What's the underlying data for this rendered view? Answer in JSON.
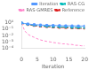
{
  "chart_data": {
    "type": "line",
    "xlabel": "Iteration",
    "x": [
      0,
      1,
      2,
      3,
      4,
      5,
      6,
      7,
      8,
      9,
      10,
      11,
      12,
      13,
      14,
      15,
      16,
      17,
      18,
      19,
      20
    ],
    "series": [
      {
        "name": "Iteration",
        "color": "#5599ff",
        "line_style": "solid",
        "marker": "square",
        "values": [
          0.85,
          0.68,
          0.58,
          0.51,
          0.46,
          0.43,
          0.4,
          0.38,
          0.36,
          0.35,
          0.34,
          0.33,
          0.32,
          0.31,
          0.3,
          0.3,
          0.29,
          0.29,
          0.28,
          0.28,
          0.27
        ]
      },
      {
        "name": "RAS-CG",
        "color": "#00bbbb",
        "line_style": "dashed",
        "marker": "diamond",
        "values": [
          0.82,
          0.62,
          0.5,
          0.42,
          0.37,
          0.33,
          0.3,
          0.27,
          0.25,
          0.24,
          0.22,
          0.21,
          0.2,
          0.19,
          0.19,
          0.18,
          0.17,
          0.17,
          0.16,
          0.16,
          0.15
        ]
      },
      {
        "name": "RAS-GMRES",
        "color": "#ff88cc",
        "line_style": "dashed",
        "values": [
          0.8,
          0.05,
          0.015,
          0.008,
          0.005,
          0.003,
          0.002,
          0.0015,
          0.0012,
          0.001,
          0.0008,
          0.0007,
          0.0006,
          0.0005,
          0.0005,
          0.0004,
          0.0004,
          0.0003,
          0.0003,
          0.00025,
          0.00025
        ]
      },
      {
        "name": "Reference",
        "color": "#dd2222",
        "line_style": "dashed",
        "marker": "triangle",
        "values": [
          0.75,
          0.55,
          0.44,
          0.37,
          0.32,
          0.28,
          0.25,
          0.23,
          0.21,
          0.2,
          0.18,
          0.17,
          0.16,
          0.16,
          0.15,
          0.14,
          0.14,
          0.13,
          0.13,
          0.12,
          0.12
        ]
      }
    ],
    "xlim": [
      0,
      20
    ],
    "xticks": [
      0,
      5,
      10,
      15,
      20
    ],
    "ylim": [
      0.0001,
      1.5
    ],
    "yticks": [
      {
        "value": 0.0001,
        "label": "10⁻⁴"
      },
      {
        "value": 0.001,
        "label": "10⁻³"
      },
      {
        "value": 0.01,
        "label": "10⁻²"
      },
      {
        "value": 0.1,
        "label": "10⁻¹"
      },
      {
        "value": 1,
        "label": "10⁰"
      }
    ],
    "log": "y",
    "grid": false,
    "legend": "upper right"
  }
}
